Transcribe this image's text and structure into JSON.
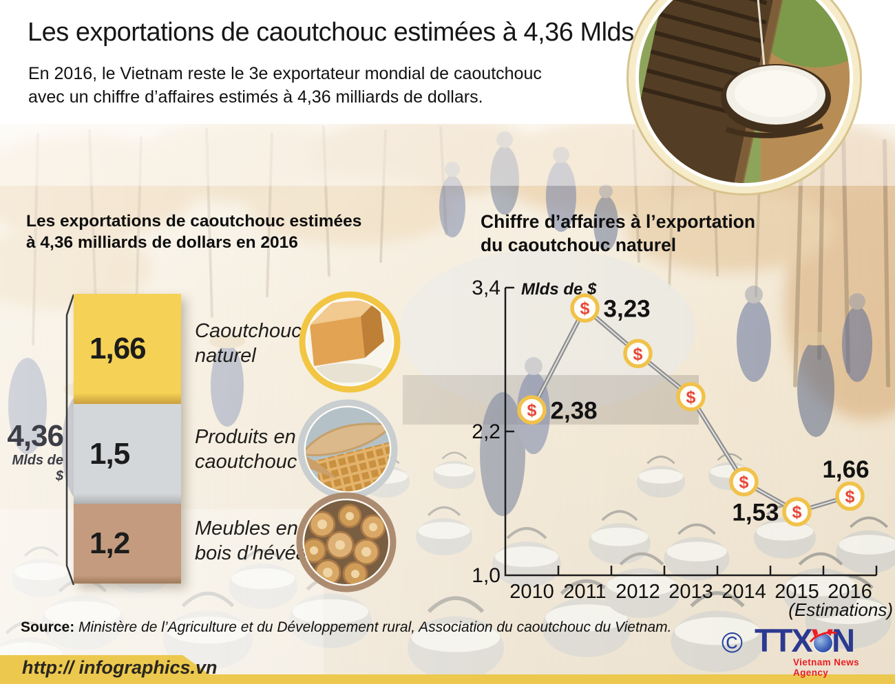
{
  "header": {
    "title": "Les exportations de caoutchouc estimées à 4,36 Mlds de $",
    "subtitle": [
      "En 2016, le Vietnam reste le 3e exportateur mondial de caoutchouc",
      "avec un chiffre d’affaires estimés à 4,36 milliards de dollars."
    ]
  },
  "left_section": {
    "heading": [
      "Les exportations de caoutchouc estimées",
      "à 4,36 milliards de dollars en 2016"
    ],
    "total_value": "4,36",
    "total_unit": "Mlds de $"
  },
  "right_section": {
    "heading": [
      "Chiffre d’affaires à l’exportation",
      "du caoutchouc naturel"
    ]
  },
  "chart_data": [
    {
      "type": "bar",
      "stacked": true,
      "title": "Les exportations de caoutchouc estimées à 4,36 milliards de dollars en 2016",
      "total": 4.36,
      "total_label": "4,36",
      "unit": "Mlds de $",
      "categories": [
        "Caoutchouc naturel",
        "Produits en caoutchouc",
        "Meubles en bois d’hévéa"
      ],
      "category_lines": [
        [
          "Caoutchouc",
          "naturel"
        ],
        [
          "Produits en",
          "caoutchouc"
        ],
        [
          "Meubles en",
          "bois d’hévéa"
        ]
      ],
      "values": [
        1.66,
        1.5,
        1.2
      ],
      "value_labels": [
        "1,66",
        "1,5",
        "1,2"
      ],
      "colors": [
        "#F5D155",
        "#D3D7D9",
        "#C49B7E"
      ],
      "shade_colors": [
        "#C9A03E",
        "#AEB2B4",
        "#9F7B5A"
      ]
    },
    {
      "type": "line",
      "title": "Chiffre d’affaires à l’exportation du caoutchouc naturel",
      "unit": "Mlds de $",
      "x": [
        "2010",
        "2011",
        "2012",
        "2013",
        "2014",
        "2015",
        "2016"
      ],
      "values": [
        2.38,
        3.23,
        2.85,
        2.49,
        1.78,
        1.53,
        1.66
      ],
      "point_labels": [
        "2,38",
        "3,23",
        "",
        "",
        "",
        "1,53",
        "1,66"
      ],
      "label_side": [
        "right",
        "right",
        "",
        "",
        "",
        "left",
        "above"
      ],
      "y_ticks": [
        3.4,
        2.2,
        1.0
      ],
      "y_tick_labels": [
        "3,4",
        "2,2",
        "1,0"
      ],
      "ylim": [
        1.0,
        3.4
      ],
      "note": "(Estimations)",
      "marker_symbol": "$",
      "line_color": "#8E8E8E",
      "marker_ring_color": "#F1C24B",
      "marker_symbol_color": "#E8473B"
    }
  ],
  "source": {
    "label": "Source:",
    "text": " Ministère de l’Agriculture et du Développement rural, Association du caoutchouc du Vietnam."
  },
  "footer": {
    "url": "http:// infographics.vn",
    "logo": {
      "copyright": "©",
      "part1": "TTX",
      "part2": "V",
      "part3": "N",
      "tagline": "Vietnam News Agency"
    }
  },
  "colors": {
    "footer_bar": "#ECC94E",
    "logo_blue": "#2B3990",
    "logo_red": "#EC1C24",
    "bar_yellow": "#F5D155",
    "bar_gray": "#D3D7D9",
    "bar_brown": "#C49B7E"
  }
}
